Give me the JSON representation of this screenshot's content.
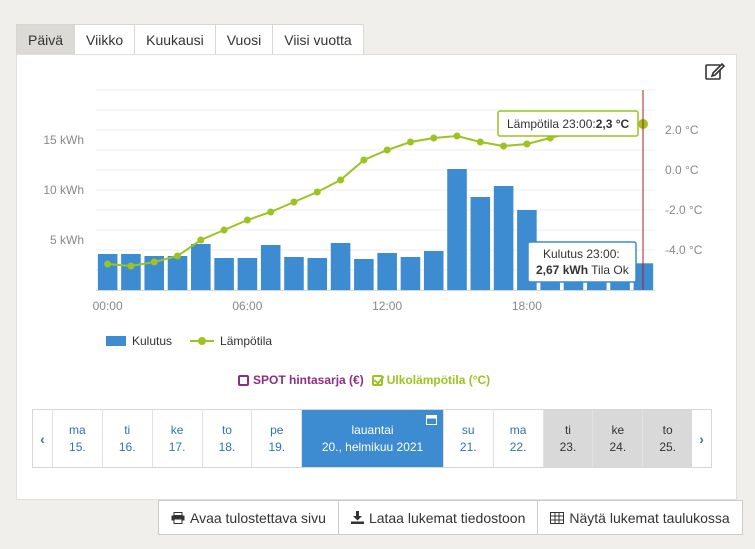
{
  "tabs": [
    {
      "label": "Päivä",
      "active": true
    },
    {
      "label": "Viikko"
    },
    {
      "label": "Kuukausi"
    },
    {
      "label": "Vuosi"
    },
    {
      "label": "Viisi vuotta"
    }
  ],
  "chart_data": {
    "type": "bar+line",
    "x": [
      "00",
      "01",
      "02",
      "03",
      "04",
      "05",
      "06",
      "07",
      "08",
      "09",
      "10",
      "11",
      "12",
      "13",
      "14",
      "15",
      "16",
      "17",
      "18",
      "19",
      "20",
      "21",
      "22",
      "23"
    ],
    "x_tick_labels": [
      "00:00",
      "06:00",
      "12:00",
      "18:00"
    ],
    "series": [
      {
        "name": "Kulutus",
        "axis": "left",
        "type": "bar",
        "values": [
          3.6,
          3.6,
          3.4,
          3.4,
          4.6,
          3.2,
          3.2,
          4.5,
          3.3,
          3.2,
          4.7,
          3.1,
          3.7,
          3.3,
          3.9,
          12.1,
          9.3,
          10.4,
          8.0,
          3.3,
          3.3,
          3.3,
          3.3,
          2.67
        ]
      },
      {
        "name": "Lämpötila",
        "axis": "right",
        "type": "line",
        "values": [
          -4.7,
          -4.8,
          -4.6,
          -4.3,
          -3.5,
          -3.0,
          -2.5,
          -2.1,
          -1.6,
          -1.1,
          -0.5,
          0.5,
          1.0,
          1.4,
          1.6,
          1.7,
          1.4,
          1.2,
          1.3,
          1.6,
          1.9,
          2.1,
          2.2,
          2.3
        ]
      }
    ],
    "left_axis": {
      "unit": "kWh",
      "ticks": [
        {
          "value": 5,
          "label": "5 kWh"
        },
        {
          "value": 10,
          "label": "10 kWh"
        },
        {
          "value": 15,
          "label": "15 kWh"
        }
      ],
      "min": 0,
      "max": 20
    },
    "right_axis": {
      "unit": "°C",
      "ticks": [
        {
          "value": 2,
          "label": "2.0 °C"
        },
        {
          "value": 0,
          "label": "0.0 °C"
        },
        {
          "value": -2,
          "label": "-2.0 °C"
        },
        {
          "value": -4,
          "label": "-4.0 °C"
        }
      ],
      "min": -6,
      "max": 4
    },
    "grid": true,
    "legend": "bottom-left",
    "colors": {
      "bar": "#3d8bd1",
      "line": "#9cc321",
      "cursor": "#b31b1b"
    },
    "tooltip_temp": {
      "prefix": "Lämpötila 23:00:",
      "value": "2,3 °C"
    },
    "tooltip_kwh": {
      "line1": "Kulutus  23:00:",
      "value": "2,67 kWh",
      "suffix": " Tila Ok"
    }
  },
  "legend": [
    {
      "label": "Kulutus"
    },
    {
      "label": "Lämpötila"
    }
  ],
  "toggles": {
    "spot": "SPOT hintasarja (€)",
    "outdoor": "Ulkolämpötila (°C)"
  },
  "days": [
    {
      "weekday": "ma",
      "date": "15."
    },
    {
      "weekday": "ti",
      "date": "16."
    },
    {
      "weekday": "ke",
      "date": "17."
    },
    {
      "weekday": "to",
      "date": "18."
    },
    {
      "weekday": "pe",
      "date": "19."
    },
    {
      "weekday": "lauantai",
      "date": "20., helmikuu 2021",
      "selected": true
    },
    {
      "weekday": "su",
      "date": "21."
    },
    {
      "weekday": "ma",
      "date": "22."
    },
    {
      "weekday": "ti",
      "date": "23.",
      "future": true
    },
    {
      "weekday": "ke",
      "date": "24.",
      "future": true
    },
    {
      "weekday": "to",
      "date": "25.",
      "future": true
    }
  ],
  "nav": {
    "prev": "‹",
    "next": "›"
  },
  "actions": {
    "print": "Avaa tulostettava sivu",
    "download": "Lataa lukemat tiedostoon",
    "table": "Näytä lukemat taulukossa"
  }
}
